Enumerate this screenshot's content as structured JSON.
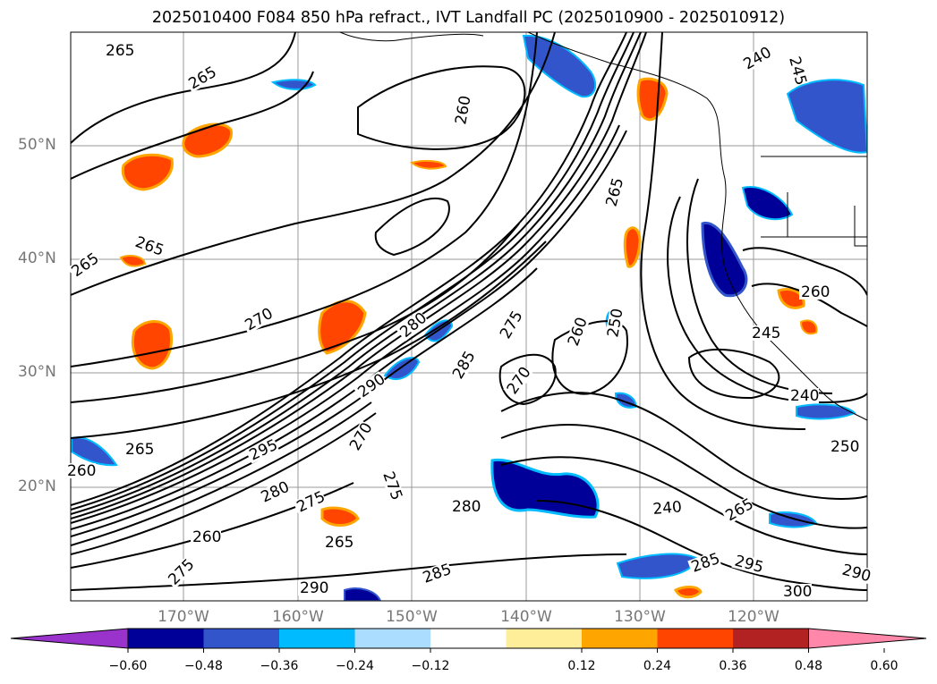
{
  "title": "2025010400 F084 850 hPa refract., IVT Landfall PC (2025010900 - 2025010912)",
  "map": {
    "lat_labels": [
      "50°N",
      "40°N",
      "30°N",
      "20°N"
    ],
    "lon_labels": [
      "170°W",
      "160°W",
      "150°W",
      "140°W",
      "130°W",
      "120°W"
    ],
    "contour_labels": [
      "265",
      "265",
      "260",
      "240",
      "245",
      "265",
      "265",
      "270",
      "280",
      "290",
      "295",
      "285",
      "270",
      "275",
      "260",
      "250",
      "265",
      "260",
      "245",
      "240",
      "250",
      "240",
      "265",
      "285",
      "295",
      "290",
      "300",
      "280",
      "265",
      "275",
      "260",
      "285",
      "290",
      "270",
      "275",
      "265",
      "260",
      "280",
      "275"
    ]
  },
  "colorbar": {
    "colors": [
      "#9933cc",
      "#000099",
      "#3355cc",
      "#00bbff",
      "#aaddff",
      "#ffffff",
      "#ffee99",
      "#ffa500",
      "#ff4500",
      "#b22222",
      "#ff88aa"
    ],
    "tick_labels": [
      "−0.60",
      "−0.48",
      "−0.36",
      "−0.24",
      "−0.12",
      "0.12",
      "0.24",
      "0.36",
      "0.48",
      "0.60"
    ]
  },
  "colors": {
    "contour": "#000000",
    "grid": "#999999",
    "coast": "#000000"
  }
}
